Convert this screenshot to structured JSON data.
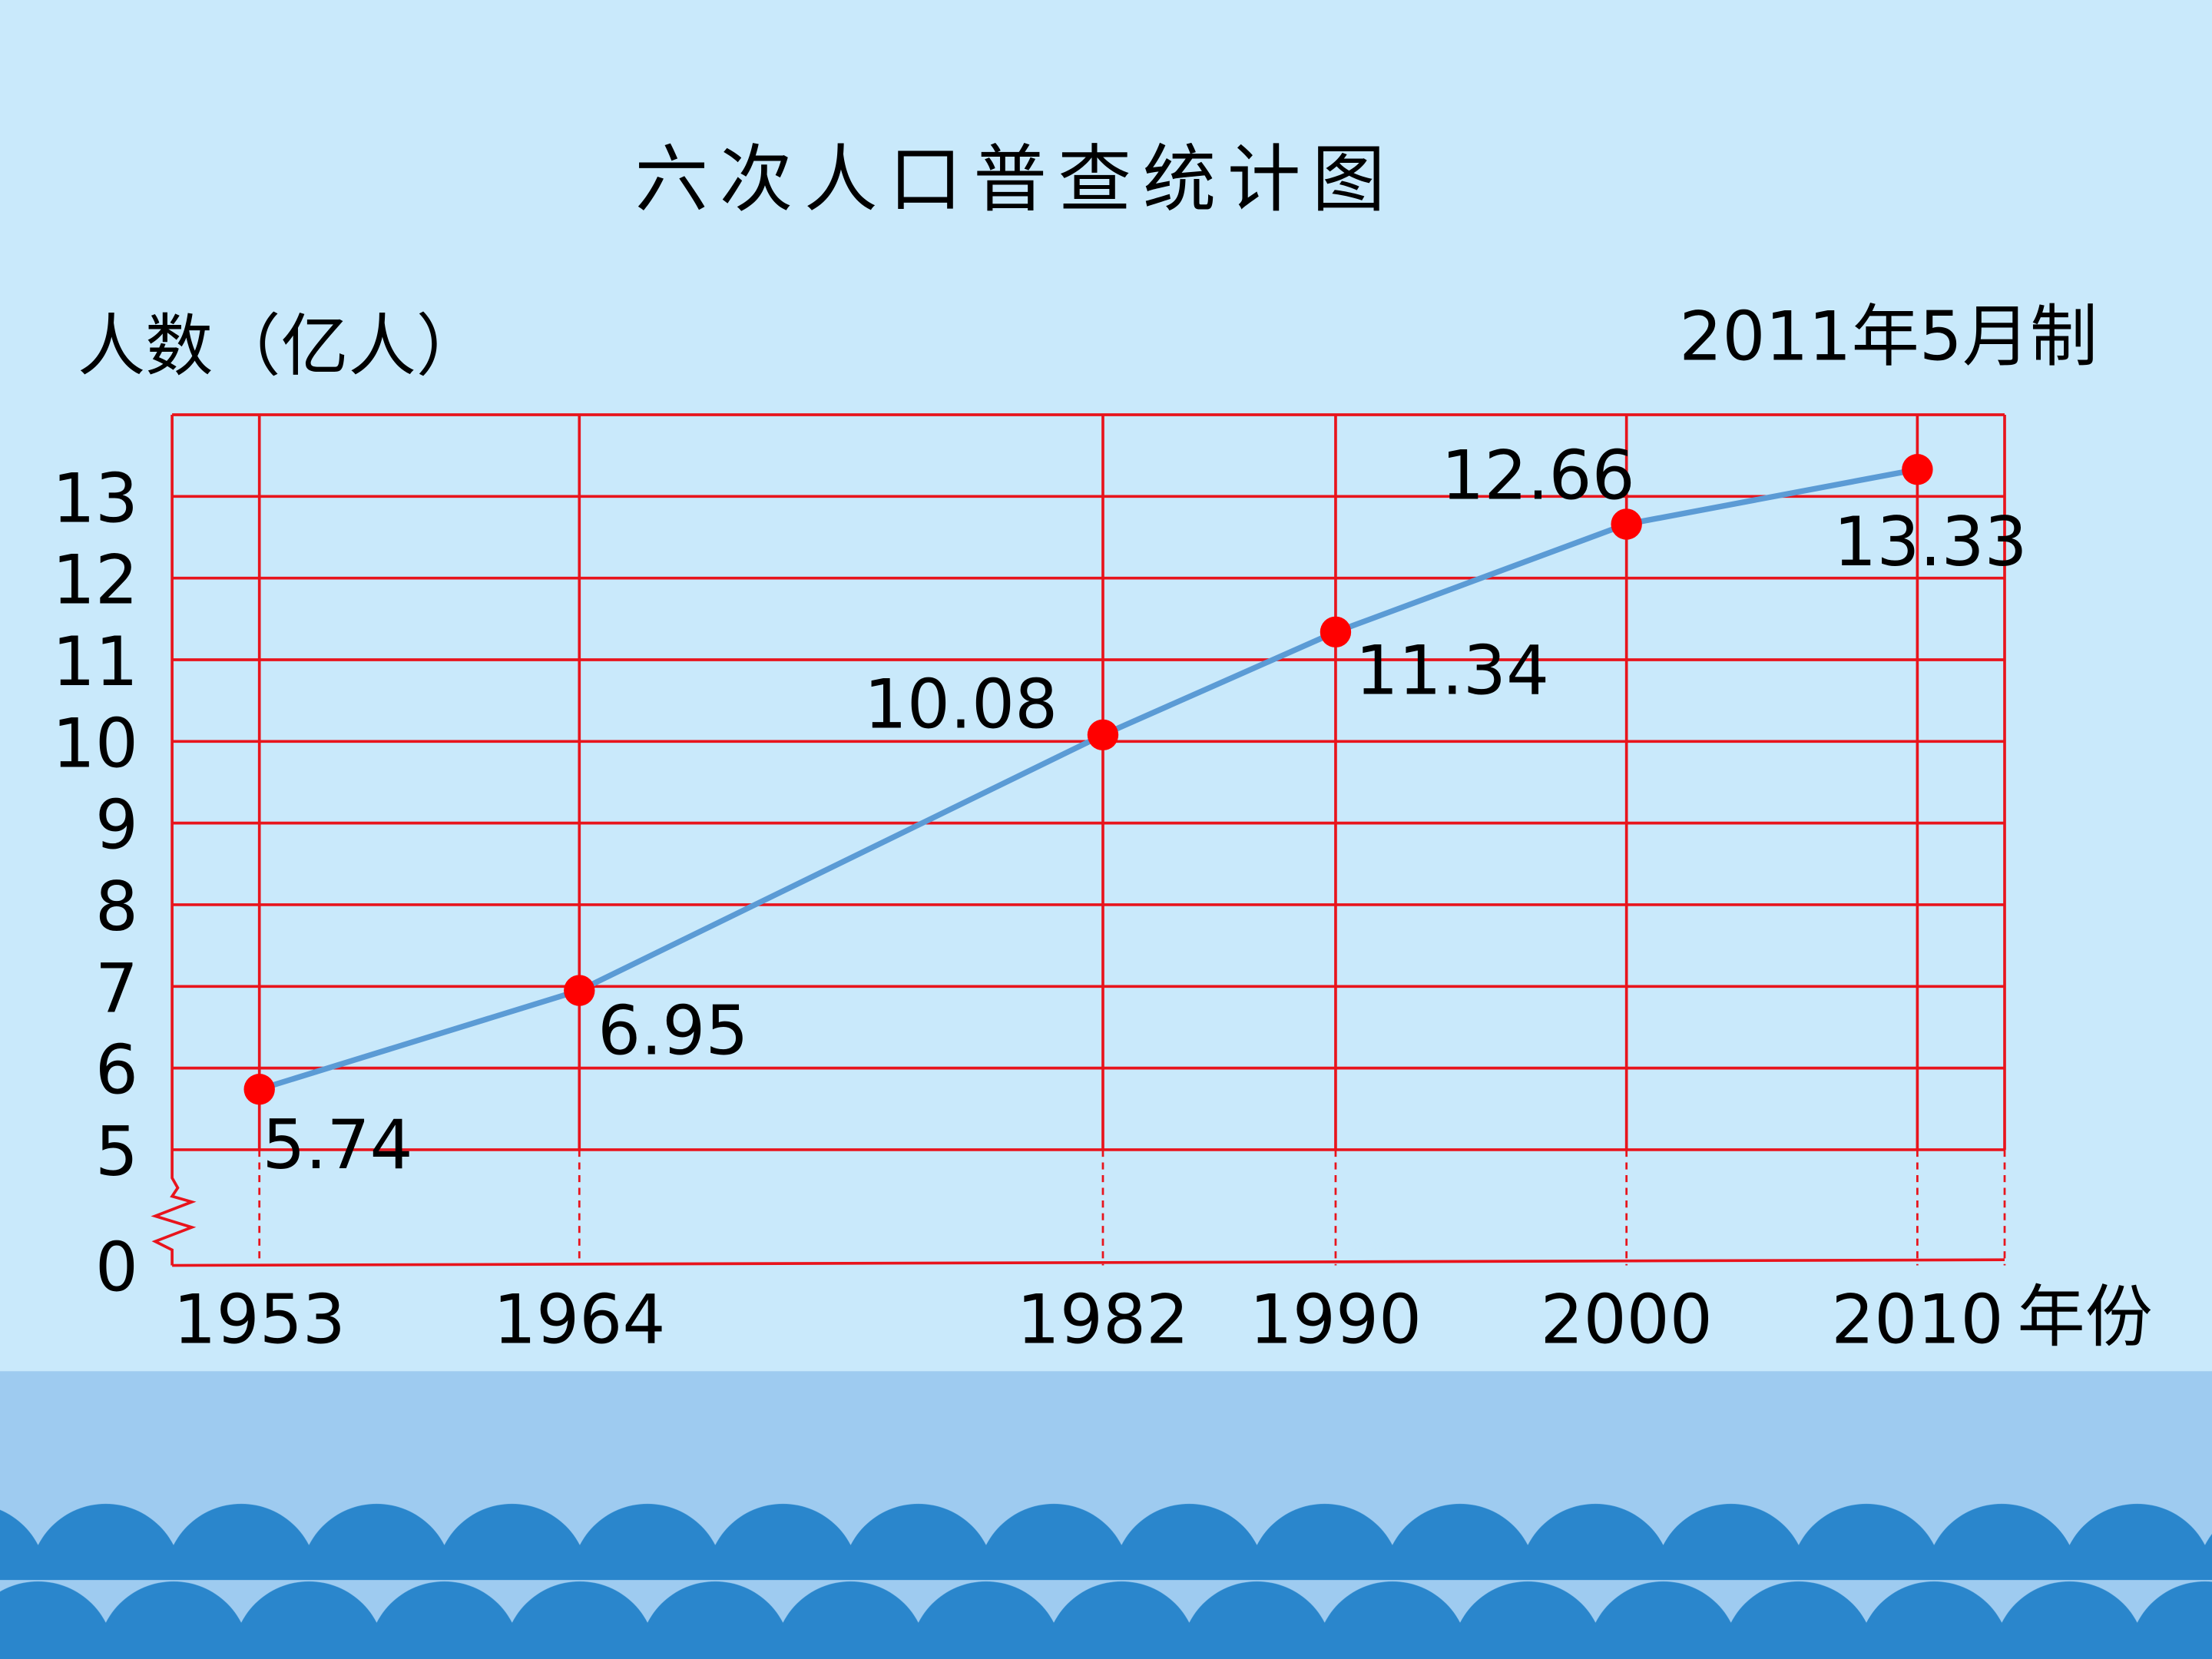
{
  "chart_data": {
    "type": "line",
    "title": "六次人口普查统计图",
    "y_label": "人数（亿人）",
    "note": "2011年5月制",
    "x_label": "年份",
    "x": [
      1953,
      1964,
      1982,
      1990,
      2000,
      2010
    ],
    "xticks": [
      1953,
      1964,
      1982,
      1990,
      2000,
      2010
    ],
    "xlim": [
      1950,
      2013
    ],
    "values": [
      5.74,
      6.95,
      10.08,
      11.34,
      12.66,
      13.33
    ],
    "color": "#5b9bd5",
    "marker_color": "#ff0000",
    "grid_color": "#e8141c",
    "ylim": [
      0,
      14
    ],
    "y_break": [
      0,
      5
    ],
    "yticks": [
      0,
      5,
      6,
      7,
      8,
      9,
      10,
      11,
      12,
      13
    ],
    "grid": true
  }
}
